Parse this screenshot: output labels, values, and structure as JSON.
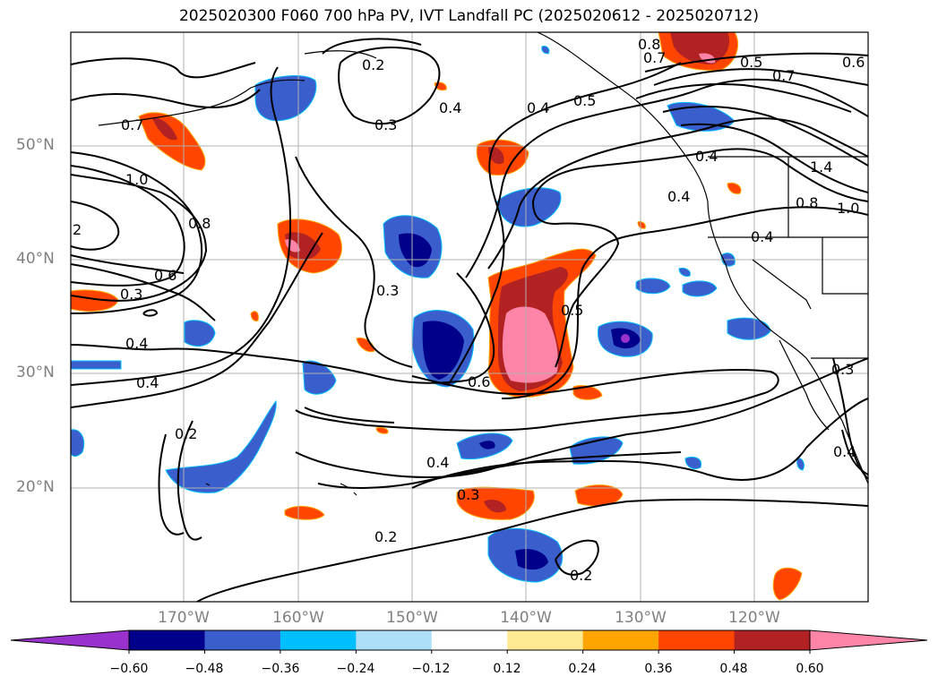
{
  "title": "2025020300 F060 700 hPa PV, IVT Landfall PC (2025020612 - 2025020712)",
  "lat_labels": [
    "50°N",
    "40°N",
    "30°N",
    "20°N"
  ],
  "lon_labels": [
    "170°W",
    "160°W",
    "150°W",
    "140°W",
    "130°W",
    "120°W"
  ],
  "colorbar": {
    "ticks": [
      "−0.60",
      "−0.48",
      "−0.36",
      "−0.24",
      "−0.12",
      "0.12",
      "0.24",
      "0.36",
      "0.48",
      "0.60"
    ],
    "colors": [
      "#9932CC",
      "#00008B",
      "#3A5FCD",
      "#00BFFF",
      "#ADDFF7",
      "#FFFFFF",
      "#FFE993",
      "#FFA500",
      "#FF4500",
      "#B22222",
      "#FF85A8"
    ],
    "extend": "both"
  },
  "contour_labels": [
    "0.8",
    "0.7",
    "0.5",
    "0.6",
    "0.7",
    "0.2",
    "0.4",
    "0.3",
    "0.4",
    "0.5",
    "0.7",
    "1.0",
    "0.8",
    "0.6",
    "2",
    "0.3",
    "0.4",
    "0.4",
    "0.3",
    "0.5",
    "0.6",
    "0.4",
    "0.4",
    "0.8",
    "1.0",
    "1.4",
    "0.4",
    "0.2",
    "0.4",
    "0.3",
    "0.2",
    "0.2",
    "0.3",
    "0.4"
  ],
  "coastline_color": "#000000",
  "grid": true
}
